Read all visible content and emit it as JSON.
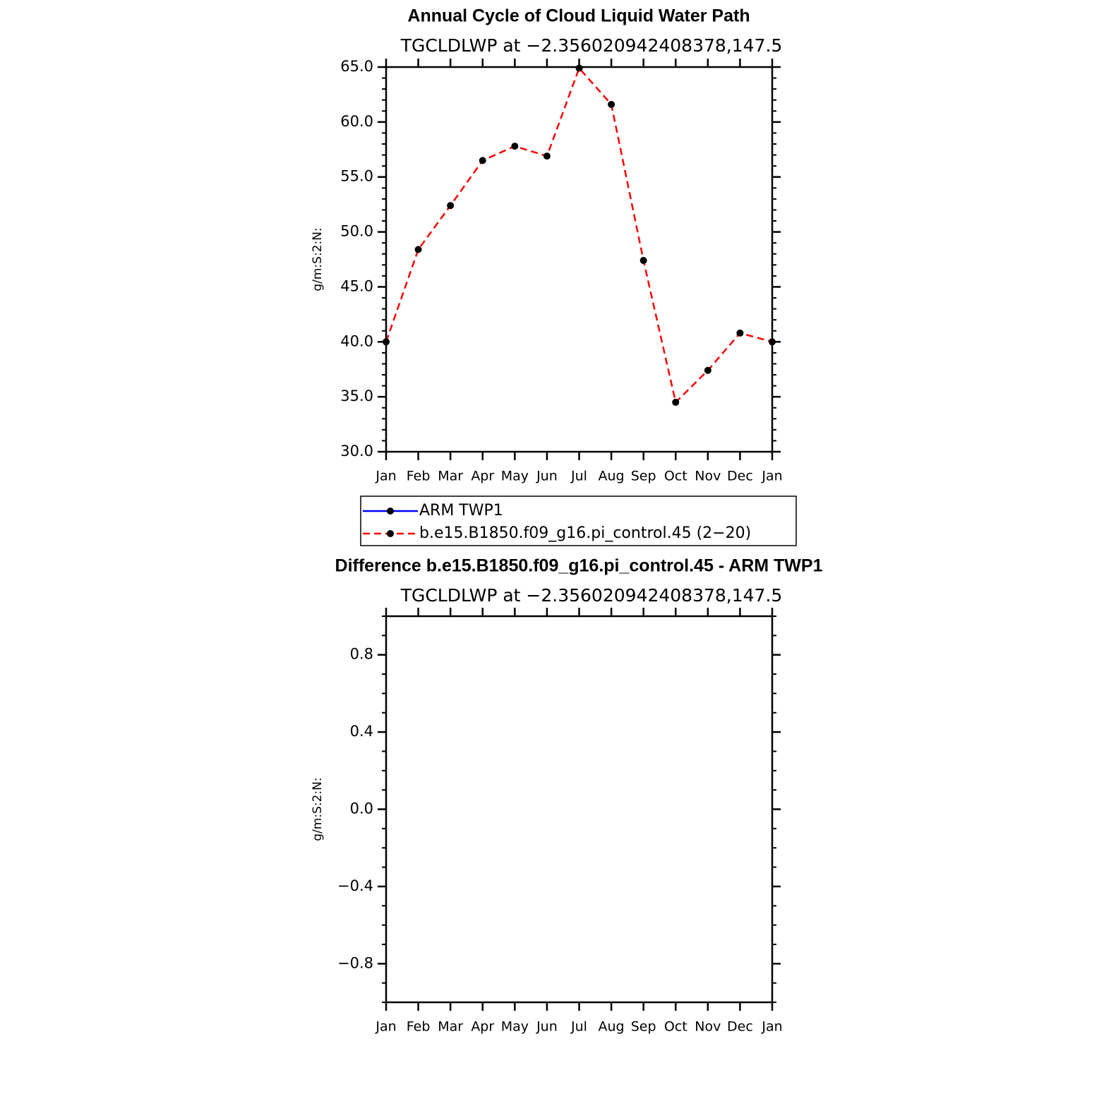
{
  "chart_data": [
    {
      "type": "line",
      "title": "Annual Cycle of Cloud Liquid Water Path",
      "subtitle": "TGCLDLWP at −2.356020942408378,147.5",
      "y_label": "g/m:S:2:N:",
      "categories": [
        "Jan",
        "Feb",
        "Mar",
        "Apr",
        "May",
        "Jun",
        "Jul",
        "Aug",
        "Sep",
        "Oct",
        "Nov",
        "Dec",
        "Jan"
      ],
      "series": [
        {
          "name": "ARM TWP1",
          "color": "#0000ff",
          "line_style": "solid",
          "values": [
            null,
            null,
            null,
            null,
            null,
            null,
            null,
            null,
            null,
            null,
            null,
            null,
            null
          ]
        },
        {
          "name": "b.e15.B1850.f09_g16.pi_control.45 (2−20)",
          "color": "#ff0000",
          "line_style": "dashed",
          "values": [
            40.0,
            48.4,
            52.4,
            56.5,
            57.8,
            56.9,
            64.9,
            61.6,
            47.4,
            34.5,
            37.4,
            40.8,
            40.0
          ]
        }
      ],
      "ylim": [
        30,
        65
      ],
      "yticks": [
        {
          "value": 30,
          "label": "30.0"
        },
        {
          "value": 35,
          "label": "35.0"
        },
        {
          "value": 40,
          "label": "40.0"
        },
        {
          "value": 45,
          "label": "45.0"
        },
        {
          "value": 50,
          "label": "50.0"
        },
        {
          "value": 55,
          "label": "55.0"
        },
        {
          "value": 60,
          "label": "60.0"
        },
        {
          "value": 65,
          "label": "65.0"
        }
      ],
      "legend": "bottom"
    },
    {
      "type": "line",
      "title": "Difference b.e15.B1850.f09_g16.pi_control.45 - ARM TWP1",
      "subtitle": "TGCLDLWP at −2.356020942408378,147.5",
      "y_label": "g/m:S:2:N:",
      "categories": [
        "Jan",
        "Feb",
        "Mar",
        "Apr",
        "May",
        "Jun",
        "Jul",
        "Aug",
        "Sep",
        "Oct",
        "Nov",
        "Dec",
        "Jan"
      ],
      "ylim": [
        -1,
        1
      ],
      "yticks": [
        {
          "value": -0.8,
          "label": "−0.8"
        },
        {
          "value": -0.4,
          "label": "−0.4"
        },
        {
          "value": 0,
          "label": "0.0"
        },
        {
          "value": 0.4,
          "label": "0.4"
        },
        {
          "value": 0.8,
          "label": "0.8"
        }
      ]
    }
  ]
}
